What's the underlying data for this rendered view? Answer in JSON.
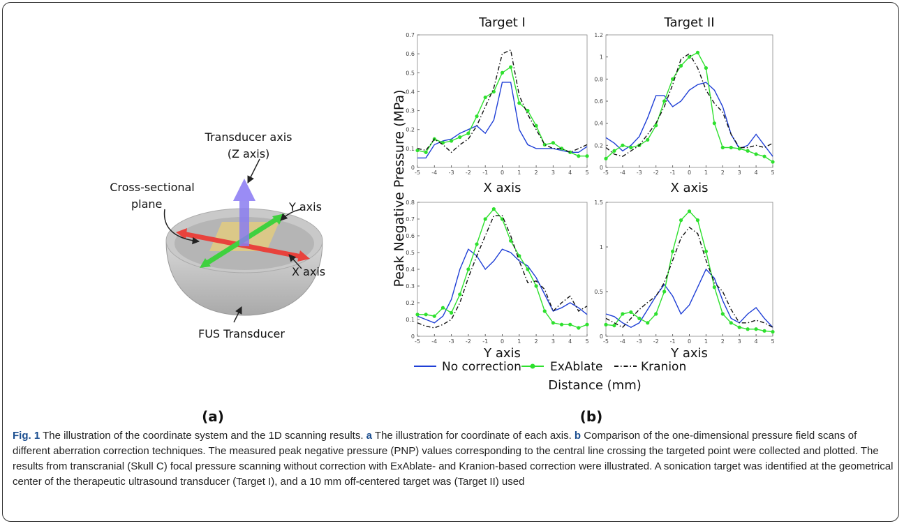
{
  "diagram": {
    "z_label_1": "Transducer axis",
    "z_label_2": "(Z axis)",
    "plane_label_1": "Cross-sectional",
    "plane_label_2": "plane",
    "y_label": "Y axis",
    "x_label": "X axis",
    "transducer_label": "FUS Transducer"
  },
  "panel_labels": [
    "(a)",
    "(b)"
  ],
  "figure": {
    "y_label": "Peak Negative Pressure (MPa)",
    "x_label": "Distance (mm)"
  },
  "legend": [
    {
      "name": "No correction",
      "color": "#1f3fd6",
      "linestyle": "solid",
      "marker": false
    },
    {
      "name": "ExAblate",
      "color": "#2ee02e",
      "linestyle": "solid",
      "marker": true
    },
    {
      "name": "Kranion",
      "color": "#111111",
      "linestyle": "dashdot",
      "marker": false
    }
  ],
  "chart_data": [
    {
      "type": "line",
      "title": "Target I",
      "x_label": "X axis",
      "x": [
        -5,
        -4.5,
        -4,
        -3.5,
        -3,
        -2.5,
        -2,
        -1.5,
        -1,
        -0.5,
        0,
        0.5,
        1,
        1.5,
        2,
        2.5,
        3,
        3.5,
        4,
        4.5,
        5
      ],
      "xlim": [
        -5,
        5
      ],
      "xticks": [
        -5,
        -4,
        -3,
        -2,
        -1,
        0,
        1,
        2,
        3,
        4,
        5
      ],
      "ylim": [
        0,
        0.7
      ],
      "yticks": [
        0,
        0.1,
        0.2,
        0.3,
        0.4,
        0.5,
        0.6,
        0.7
      ],
      "series": [
        {
          "color": "#1f3fd6",
          "linestyle": "solid",
          "marker": false,
          "values": [
            0.05,
            0.05,
            0.12,
            0.14,
            0.15,
            0.18,
            0.2,
            0.22,
            0.18,
            0.25,
            0.45,
            0.45,
            0.2,
            0.12,
            0.1,
            0.1,
            0.1,
            0.09,
            0.08,
            0.08,
            0.11
          ]
        },
        {
          "color": "#2ee02e",
          "linestyle": "solid",
          "marker": true,
          "values": [
            0.09,
            0.08,
            0.15,
            0.13,
            0.14,
            0.16,
            0.18,
            0.27,
            0.37,
            0.4,
            0.5,
            0.53,
            0.34,
            0.3,
            0.22,
            0.12,
            0.13,
            0.1,
            0.08,
            0.06,
            0.06
          ]
        },
        {
          "color": "#111111",
          "linestyle": "dashdot",
          "marker": false,
          "values": [
            0.1,
            0.09,
            0.15,
            0.12,
            0.08,
            0.12,
            0.15,
            0.22,
            0.32,
            0.42,
            0.6,
            0.62,
            0.38,
            0.28,
            0.2,
            0.12,
            0.1,
            0.1,
            0.08,
            0.1,
            0.12
          ]
        }
      ]
    },
    {
      "type": "line",
      "title": "Target II",
      "x_label": "X axis",
      "x": [
        -5,
        -4.5,
        -4,
        -3.5,
        -3,
        -2.5,
        -2,
        -1.5,
        -1,
        -0.5,
        0,
        0.5,
        1,
        1.5,
        2,
        2.5,
        3,
        3.5,
        4,
        4.5,
        5
      ],
      "xlim": [
        -5,
        5
      ],
      "xticks": [
        -5,
        -4,
        -3,
        -2,
        -1,
        0,
        1,
        2,
        3,
        4,
        5
      ],
      "ylim": [
        0,
        1.2
      ],
      "yticks": [
        0,
        0.2,
        0.4,
        0.6,
        0.8,
        1,
        1.2
      ],
      "series": [
        {
          "color": "#1f3fd6",
          "linestyle": "solid",
          "marker": false,
          "values": [
            0.27,
            0.22,
            0.15,
            0.2,
            0.28,
            0.45,
            0.65,
            0.65,
            0.55,
            0.6,
            0.7,
            0.75,
            0.77,
            0.7,
            0.55,
            0.3,
            0.17,
            0.2,
            0.3,
            0.2,
            0.1
          ]
        },
        {
          "color": "#2ee02e",
          "linestyle": "solid",
          "marker": true,
          "values": [
            0.08,
            0.15,
            0.2,
            0.18,
            0.2,
            0.25,
            0.38,
            0.6,
            0.8,
            0.92,
            1.0,
            1.04,
            0.9,
            0.4,
            0.18,
            0.18,
            0.17,
            0.15,
            0.12,
            0.1,
            0.05
          ]
        },
        {
          "color": "#111111",
          "linestyle": "dashdot",
          "marker": false,
          "values": [
            0.18,
            0.12,
            0.1,
            0.15,
            0.2,
            0.3,
            0.4,
            0.55,
            0.75,
            0.98,
            1.03,
            0.9,
            0.7,
            0.58,
            0.5,
            0.3,
            0.18,
            0.18,
            0.2,
            0.18,
            0.22
          ]
        }
      ]
    },
    {
      "type": "line",
      "x_label": "Y axis",
      "x": [
        -5,
        -4.5,
        -4,
        -3.5,
        -3,
        -2.5,
        -2,
        -1.5,
        -1,
        -0.5,
        0,
        0.5,
        1,
        1.5,
        2,
        2.5,
        3,
        3.5,
        4,
        4.5,
        5
      ],
      "xlim": [
        -5,
        5
      ],
      "xticks": [
        -5,
        -4,
        -3,
        -2,
        -1,
        0,
        1,
        2,
        3,
        4,
        5
      ],
      "ylim": [
        0,
        0.8
      ],
      "yticks": [
        0,
        0.1,
        0.2,
        0.3,
        0.4,
        0.5,
        0.6,
        0.7,
        0.8
      ],
      "series": [
        {
          "color": "#1f3fd6",
          "linestyle": "solid",
          "marker": false,
          "values": [
            0.12,
            0.1,
            0.08,
            0.12,
            0.22,
            0.4,
            0.52,
            0.48,
            0.4,
            0.45,
            0.52,
            0.5,
            0.45,
            0.42,
            0.35,
            0.25,
            0.15,
            0.17,
            0.2,
            0.17,
            0.13
          ]
        },
        {
          "color": "#2ee02e",
          "linestyle": "solid",
          "marker": true,
          "values": [
            0.13,
            0.13,
            0.12,
            0.17,
            0.14,
            0.25,
            0.4,
            0.55,
            0.7,
            0.76,
            0.7,
            0.57,
            0.48,
            0.4,
            0.3,
            0.15,
            0.08,
            0.07,
            0.07,
            0.05,
            0.07
          ]
        },
        {
          "color": "#111111",
          "linestyle": "dashdot",
          "marker": false,
          "values": [
            0.08,
            0.06,
            0.05,
            0.07,
            0.1,
            0.2,
            0.35,
            0.48,
            0.6,
            0.72,
            0.72,
            0.6,
            0.45,
            0.32,
            0.33,
            0.28,
            0.15,
            0.2,
            0.24,
            0.15,
            0.18
          ]
        }
      ]
    },
    {
      "type": "line",
      "x_label": "Y axis",
      "x": [
        -5,
        -4.5,
        -4,
        -3.5,
        -3,
        -2.5,
        -2,
        -1.5,
        -1,
        -0.5,
        0,
        0.5,
        1,
        1.5,
        2,
        2.5,
        3,
        3.5,
        4,
        4.5,
        5
      ],
      "xlim": [
        -5,
        5
      ],
      "xticks": [
        -5,
        -4,
        -3,
        -2,
        -1,
        0,
        1,
        2,
        3,
        4,
        5
      ],
      "ylim": [
        0,
        1.5
      ],
      "yticks": [
        0,
        0.5,
        1,
        1.5
      ],
      "series": [
        {
          "color": "#1f3fd6",
          "linestyle": "solid",
          "marker": false,
          "values": [
            0.25,
            0.22,
            0.15,
            0.1,
            0.15,
            0.3,
            0.45,
            0.58,
            0.45,
            0.25,
            0.35,
            0.55,
            0.75,
            0.65,
            0.4,
            0.2,
            0.15,
            0.25,
            0.32,
            0.2,
            0.1
          ]
        },
        {
          "color": "#2ee02e",
          "linestyle": "solid",
          "marker": true,
          "values": [
            0.13,
            0.12,
            0.25,
            0.27,
            0.2,
            0.15,
            0.25,
            0.5,
            0.95,
            1.3,
            1.4,
            1.3,
            0.95,
            0.55,
            0.25,
            0.15,
            0.1,
            0.08,
            0.08,
            0.06,
            0.05
          ]
        },
        {
          "color": "#111111",
          "linestyle": "dashdot",
          "marker": false,
          "values": [
            0.2,
            0.15,
            0.1,
            0.2,
            0.3,
            0.38,
            0.45,
            0.6,
            0.85,
            1.1,
            1.22,
            1.15,
            0.85,
            0.6,
            0.5,
            0.3,
            0.15,
            0.15,
            0.18,
            0.15,
            0.1
          ]
        }
      ]
    }
  ],
  "caption": {
    "label": "Fig. 1",
    "intro": "The illustration of the coordinate system and the 1D scanning results.",
    "a_label": "a",
    "a_text": "The illustration for coordinate of each axis.",
    "b_label": "b",
    "b_text": "Comparison of the one-dimensional pressure field scans of different aberration correction techniques. The measured peak negative pressure (PNP) values corresponding to the central line crossing the targeted point were collected and plotted. The results from transcranial (Skull C) focal pressure scanning without correction with ExAblate- and Kranion-based correction were illustrated. A sonication target was identified at the geometrical center of the therapeutic ultrasound transducer (Target I), and a 10 mm off-centered target was (Target II) used"
  }
}
